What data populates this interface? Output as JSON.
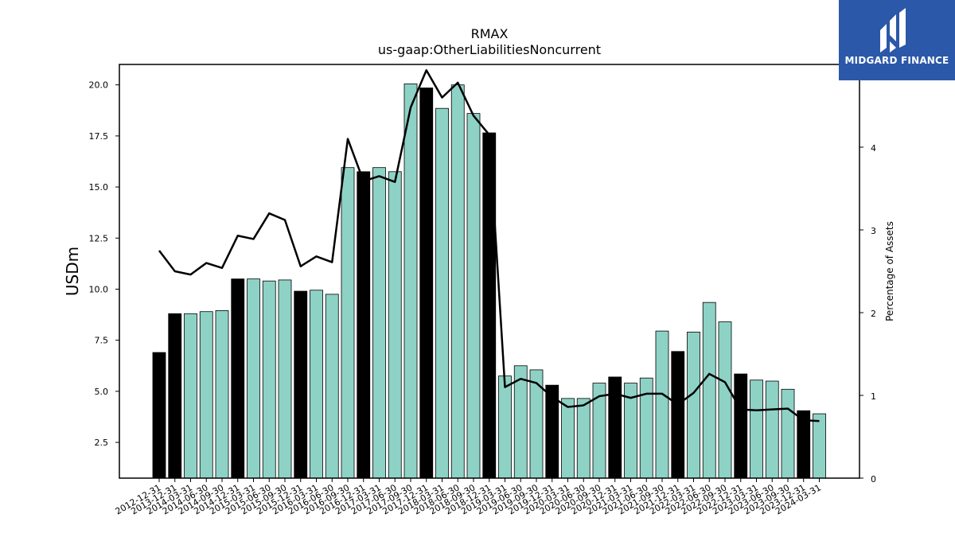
{
  "chart_data": {
    "type": "bar",
    "title": "RMAX",
    "subtitle": "us-gaap:OtherLiabilitiesNoncurrent",
    "ylabel": "USDm",
    "ylabel_right": "Percentage of Assets",
    "ylim": [
      0.75,
      21.0
    ],
    "y2lim": [
      0,
      5.0
    ],
    "yticks": [
      2.5,
      5.0,
      7.5,
      10.0,
      12.5,
      15.0,
      17.5,
      20.0
    ],
    "y2ticks": [
      0,
      1,
      2,
      3,
      4
    ],
    "categories": [
      "2012-12-31",
      "2013-12-31",
      "2014-03-31",
      "2014-06-30",
      "2014-09-30",
      "2014-12-31",
      "2015-03-31",
      "2015-06-30",
      "2015-09-30",
      "2015-12-31",
      "2016-03-31",
      "2016-06-30",
      "2016-09-30",
      "2016-12-31",
      "2017-03-31",
      "2017-06-30",
      "2017-09-30",
      "2017-12-31",
      "2018-03-31",
      "2018-06-30",
      "2018-09-30",
      "2018-12-31",
      "2019-03-31",
      "2019-06-30",
      "2019-09-30",
      "2019-12-31",
      "2020-03-31",
      "2020-06-30",
      "2020-09-30",
      "2020-12-31",
      "2021-03-31",
      "2021-06-30",
      "2021-09-30",
      "2021-12-31",
      "2022-03-31",
      "2022-06-30",
      "2022-09-30",
      "2022-12-31",
      "2023-03-31",
      "2023-06-30",
      "2023-09-30",
      "2023-12-31",
      "2024-03-31"
    ],
    "series": [
      {
        "kind": "bar",
        "values": [
          6.9,
          8.8,
          8.8,
          8.9,
          8.95,
          10.5,
          10.5,
          10.4,
          10.45,
          9.9,
          9.95,
          9.75,
          15.95,
          15.75,
          15.95,
          15.75,
          20.05,
          19.85,
          18.85,
          20.0,
          18.6,
          17.65,
          5.75,
          6.25,
          6.05,
          5.3,
          4.65,
          4.65,
          5.4,
          5.7,
          5.4,
          5.65,
          7.95,
          6.95,
          7.9,
          9.35,
          8.4,
          5.85,
          5.55,
          5.5,
          5.1,
          4.05,
          3.9
        ],
        "year_end_flags": [
          true,
          true,
          false,
          false,
          false,
          true,
          false,
          false,
          false,
          true,
          false,
          false,
          false,
          true,
          false,
          false,
          false,
          true,
          false,
          false,
          false,
          true,
          false,
          false,
          false,
          true,
          false,
          false,
          false,
          true,
          false,
          false,
          false,
          true,
          false,
          false,
          false,
          true,
          false,
          false,
          false,
          true,
          false
        ]
      },
      {
        "kind": "line",
        "axis": "right",
        "values": [
          2.75,
          2.5,
          2.46,
          2.6,
          2.54,
          2.93,
          2.89,
          3.2,
          3.12,
          2.56,
          2.68,
          2.61,
          4.1,
          3.59,
          3.65,
          3.58,
          4.48,
          4.93,
          4.6,
          4.78,
          4.38,
          4.15,
          1.1,
          1.2,
          1.15,
          0.98,
          0.86,
          0.88,
          0.99,
          1.02,
          0.97,
          1.02,
          1.02,
          0.89,
          1.03,
          1.26,
          1.16,
          0.83,
          0.82,
          0.83,
          0.84,
          0.7,
          0.69
        ]
      }
    ],
    "colors": {
      "bar_quarter": "#8ed2c6",
      "bar_year_end": "#000000",
      "bar_edge": "#000000",
      "line": "#000000"
    },
    "grid": false
  },
  "logo": {
    "text": "MIDGARD FINANCE",
    "background": "#2b58a8"
  }
}
